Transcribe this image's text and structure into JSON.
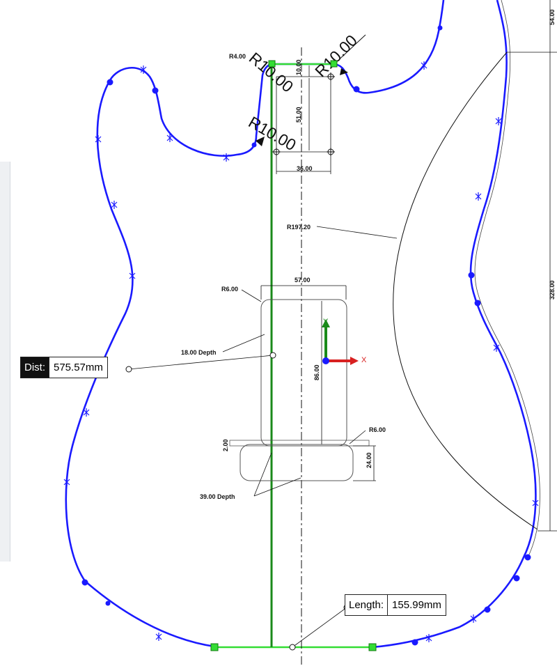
{
  "readouts": {
    "dist": {
      "label": "Dist:",
      "value": "575.57mm"
    },
    "length": {
      "label": "Length:",
      "value": "155.99mm"
    }
  },
  "dimensions": {
    "r10_top": "R10.00",
    "r10_mid": "R10.00",
    "r10_small": "R10.00",
    "r4": "R4.00",
    "d10": "10.00",
    "d51": "51.00",
    "d36": "36.00",
    "r197": "R197.20",
    "d57": "57.00",
    "r6_top": "R6.00",
    "depth18": "18.00 Depth",
    "d86": "86.00",
    "d2": "2.00",
    "r6_bottom": "R6.00",
    "d24": "24.00",
    "depth39": "39.00 Depth",
    "d54": "54.00",
    "d328": "328.00"
  },
  "triad": {
    "x_label": "X",
    "y_label": "Y"
  },
  "colors": {
    "sketch_blue": "#1a1aff",
    "selected_green": "#1a8a1a",
    "highlight_green": "#33dd33",
    "axis_red": "#d82020"
  }
}
